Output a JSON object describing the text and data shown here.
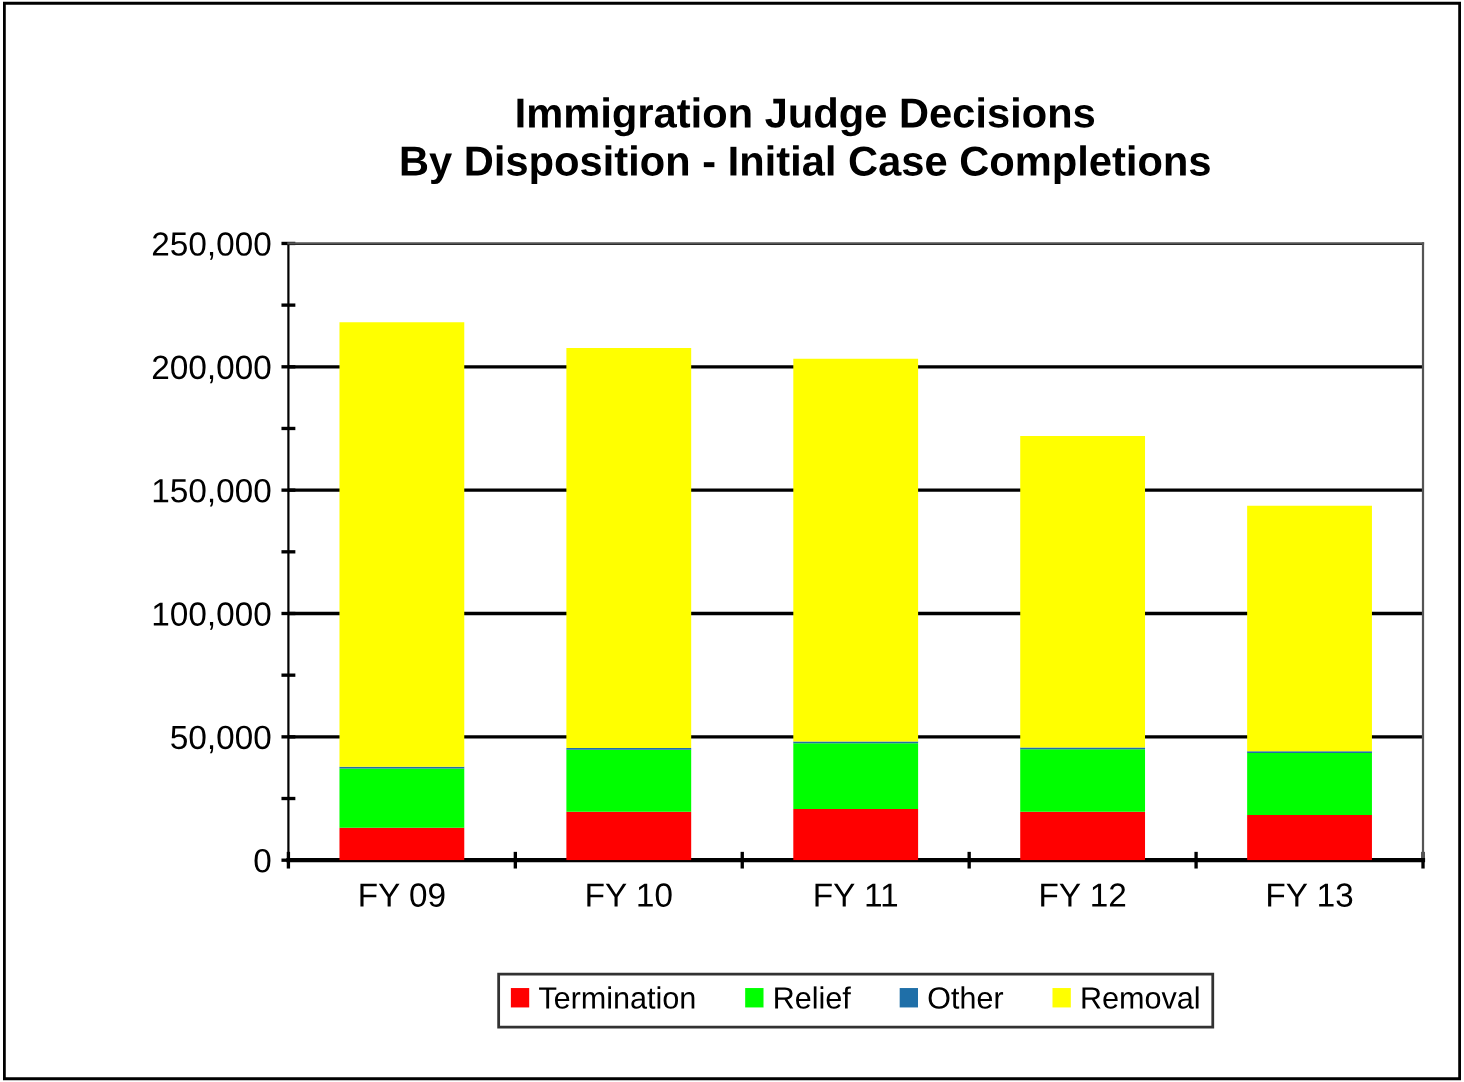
{
  "chart_data": {
    "type": "bar",
    "title": "Immigration Judge Decisions\nBy Disposition - Initial Case Completions",
    "categories": [
      "FY 09",
      "FY 10",
      "FY 11",
      "FY 12",
      "FY 13"
    ],
    "stacked": true,
    "series": [
      {
        "name": "Termination",
        "color": "#ff0000",
        "values": [
          13200,
          19600,
          20800,
          19600,
          18300
        ]
      },
      {
        "name": "Relief",
        "color": "#00ff00",
        "values": [
          24000,
          25200,
          26600,
          25400,
          25200
        ]
      },
      {
        "name": "Other",
        "color": "#1f6fa8",
        "values": [
          700,
          700,
          700,
          700,
          700
        ]
      },
      {
        "name": "Removal",
        "color": "#ffff00",
        "values": [
          180200,
          162100,
          155200,
          126200,
          99500
        ]
      }
    ],
    "ylim": [
      0,
      250000
    ],
    "yticks": [
      {
        "value": 0,
        "label": "0"
      },
      {
        "value": 25000,
        "label": null
      },
      {
        "value": 50000,
        "label": "50,000"
      },
      {
        "value": 75000,
        "label": null
      },
      {
        "value": 100000,
        "label": "100,000"
      },
      {
        "value": 125000,
        "label": null
      },
      {
        "value": 150000,
        "label": "150,000"
      },
      {
        "value": 175000,
        "label": null
      },
      {
        "value": 200000,
        "label": "200,000"
      },
      {
        "value": 225000,
        "label": null
      },
      {
        "value": 250000,
        "label": "250,000"
      }
    ],
    "grid": "y",
    "legend": "bottom"
  }
}
